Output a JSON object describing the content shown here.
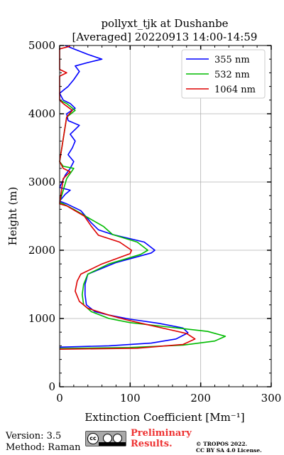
{
  "chart_data": {
    "type": "line",
    "title": "pollyxt_tjk at Dushanbe",
    "subtitle": "[Averaged] 20220913 14:00-14:59",
    "xlabel": "Extinction Coefficient [Mm⁻¹]",
    "ylabel": "Height (m)",
    "xlim": [
      0,
      300
    ],
    "ylim": [
      0,
      5000
    ],
    "xticks": [
      0,
      100,
      200,
      300
    ],
    "yticks": [
      0,
      1000,
      2000,
      3000,
      4000,
      5000
    ],
    "grid": true,
    "legend_position": "top-right",
    "series": [
      {
        "name": "355 nm",
        "color": "#0000ff",
        "points": [
          [
            0,
            580
          ],
          [
            70,
            600
          ],
          [
            130,
            640
          ],
          [
            165,
            700
          ],
          [
            182,
            790
          ],
          [
            175,
            860
          ],
          [
            140,
            930
          ],
          [
            100,
            990
          ],
          [
            70,
            1050
          ],
          [
            50,
            1100
          ],
          [
            38,
            1200
          ],
          [
            36,
            1350
          ],
          [
            36,
            1500
          ],
          [
            40,
            1650
          ],
          [
            80,
            1820
          ],
          [
            130,
            1960
          ],
          [
            135,
            2000
          ],
          [
            120,
            2120
          ],
          [
            75,
            2230
          ],
          [
            55,
            2300
          ],
          [
            45,
            2400
          ],
          [
            30,
            2580
          ],
          [
            10,
            2680
          ],
          [
            0,
            2720
          ],
          [
            8,
            2820
          ],
          [
            15,
            2880
          ],
          [
            0,
            2920
          ],
          [
            8,
            3100
          ],
          [
            15,
            3200
          ],
          [
            20,
            3300
          ],
          [
            12,
            3400
          ],
          [
            18,
            3500
          ],
          [
            22,
            3600
          ],
          [
            15,
            3700
          ],
          [
            28,
            3830
          ],
          [
            12,
            3900
          ],
          [
            10,
            4000
          ],
          [
            22,
            4080
          ],
          [
            15,
            4150
          ],
          [
            5,
            4200
          ],
          [
            0,
            4300
          ],
          [
            12,
            4400
          ],
          [
            20,
            4500
          ],
          [
            28,
            4620
          ],
          [
            22,
            4700
          ],
          [
            40,
            4750
          ],
          [
            60,
            4800
          ],
          [
            40,
            4870
          ],
          [
            20,
            4950
          ],
          [
            8,
            5000
          ]
        ]
      },
      {
        "name": "532 nm",
        "color": "#00bb00",
        "points": [
          [
            0,
            560
          ],
          [
            100,
            575
          ],
          [
            175,
            610
          ],
          [
            220,
            670
          ],
          [
            235,
            740
          ],
          [
            210,
            810
          ],
          [
            150,
            880
          ],
          [
            100,
            940
          ],
          [
            70,
            1000
          ],
          [
            45,
            1100
          ],
          [
            34,
            1200
          ],
          [
            32,
            1350
          ],
          [
            34,
            1500
          ],
          [
            40,
            1650
          ],
          [
            70,
            1800
          ],
          [
            115,
            1940
          ],
          [
            125,
            2000
          ],
          [
            110,
            2120
          ],
          [
            75,
            2230
          ],
          [
            62,
            2350
          ],
          [
            45,
            2450
          ],
          [
            20,
            2600
          ],
          [
            5,
            2680
          ],
          [
            0,
            2700
          ],
          [
            10,
            3050
          ],
          [
            20,
            3200
          ],
          [
            5,
            3230
          ],
          [
            0,
            3300
          ],
          [
            10,
            3950
          ],
          [
            22,
            4050
          ],
          [
            10,
            4150
          ],
          [
            0,
            4200
          ]
        ]
      },
      {
        "name": "1064 nm",
        "color": "#dd0000",
        "points": [
          [
            0,
            550
          ],
          [
            110,
            565
          ],
          [
            175,
            620
          ],
          [
            192,
            700
          ],
          [
            180,
            780
          ],
          [
            150,
            850
          ],
          [
            120,
            920
          ],
          [
            95,
            980
          ],
          [
            70,
            1050
          ],
          [
            40,
            1150
          ],
          [
            28,
            1250
          ],
          [
            22,
            1400
          ],
          [
            25,
            1550
          ],
          [
            30,
            1650
          ],
          [
            60,
            1800
          ],
          [
            100,
            1950
          ],
          [
            102,
            2000
          ],
          [
            85,
            2120
          ],
          [
            55,
            2220
          ],
          [
            45,
            2350
          ],
          [
            35,
            2500
          ],
          [
            10,
            2650
          ],
          [
            0,
            2680
          ],
          [
            5,
            3050
          ],
          [
            15,
            3150
          ],
          [
            5,
            3200
          ],
          [
            0,
            3300
          ],
          [
            10,
            3950
          ],
          [
            18,
            4050
          ],
          [
            5,
            4150
          ],
          [
            0,
            4200
          ],
          [
            0,
            4550
          ],
          [
            10,
            4600
          ],
          [
            0,
            4650
          ],
          [
            0,
            4950
          ],
          [
            15,
            4990
          ]
        ]
      }
    ]
  },
  "footer": {
    "version": "Version: 3.5",
    "method": "Method: Raman",
    "license_badge": "cc",
    "preliminary_line1": "Preliminary",
    "preliminary_line2": "Results.",
    "copyright_line1": "© TROPOS 2022.",
    "copyright_line2": "CC BY SA 4.0 License."
  }
}
